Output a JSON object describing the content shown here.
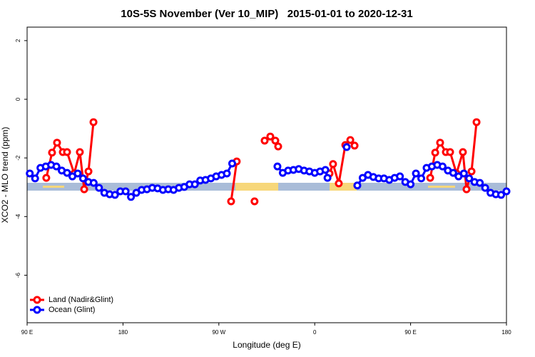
{
  "chart_data": {
    "type": "line",
    "title": "10S-5S November (Ver 10_MIP)   2015-01-01 to 2020-12-31",
    "x_label": "Longitude (deg E)",
    "y_label": "XCO2 - MLO trend (ppm)",
    "xlim": [
      90,
      540
    ],
    "xticks": [
      {
        "value": 90,
        "label": "90 E"
      },
      180,
      {
        "value": 270,
        "label": "90 W"
      },
      {
        "value": 360,
        "label": "0"
      },
      {
        "value": 450,
        "label": "90 E"
      },
      {
        "value": 540,
        "label": "180"
      }
    ],
    "ylim": [
      -7.62,
      2.46
    ],
    "yticks": [
      -6,
      -4,
      -2,
      0,
      2
    ],
    "legend": "bottomleft",
    "series": [
      {
        "name": "Land (Nadir&Glint)",
        "color": "#ff0000",
        "x": [
          108,
          113.4,
          118.1,
          123.5,
          127.5,
          134.2,
          139.5,
          143.6,
          147.6,
          152.3,
          null,
          281.5,
          286.8,
          null,
          303.5,
          null,
          313,
          318.3,
          323,
          325.7,
          null,
          373.9,
          377.2,
          382.6,
          388.7,
          393.4,
          397.4,
          null,
          468.4,
          473.1,
          477.7,
          483.1,
          487.1,
          493.1,
          499.1,
          502.5,
          507.2,
          511.9
        ],
        "values": [
          -2.68,
          -1.82,
          -1.48,
          -1.8,
          -1.8,
          -2.53,
          -1.8,
          -3.07,
          -2.46,
          -0.78,
          null,
          -3.48,
          -2.12,
          null,
          -3.48,
          null,
          -1.41,
          -1.27,
          -1.41,
          -1.61,
          null,
          -2.53,
          -2.21,
          -2.87,
          -1.56,
          -1.39,
          -1.58,
          null,
          -2.68,
          -1.82,
          -1.48,
          -1.8,
          -1.8,
          -2.53,
          -1.8,
          -3.07,
          -2.46,
          -0.78
        ]
      },
      {
        "name": "Ocean (Glint)",
        "color": "#0000ff",
        "x": [
          92.5,
          97.5,
          102.5,
          107.5,
          112.5,
          117.5,
          122.5,
          127.5,
          132.5,
          137.5,
          142.5,
          147.5,
          152.5,
          157.5,
          162.5,
          167.5,
          172.5,
          177.5,
          182.5,
          187.5,
          192.5,
          197.5,
          202.5,
          207.5,
          212.5,
          217.5,
          222.5,
          227.5,
          232.5,
          237.5,
          242.5,
          247.5,
          252.5,
          257.5,
          262.5,
          267.5,
          272.5,
          277.5,
          282.5,
          null,
          325,
          330,
          335,
          340,
          345,
          350,
          355,
          360,
          365,
          370,
          372,
          null,
          390,
          null,
          400,
          405,
          410,
          415,
          420,
          425,
          430,
          435,
          440,
          445,
          450,
          455,
          460,
          465,
          470,
          475,
          480,
          485,
          490,
          495,
          500,
          505,
          510,
          515,
          520,
          525,
          530,
          535,
          540
        ],
        "values": [
          -2.53,
          -2.7,
          -2.34,
          -2.29,
          -2.24,
          -2.29,
          -2.43,
          -2.51,
          -2.63,
          -2.53,
          -2.7,
          -2.82,
          -2.85,
          -3.02,
          -3.19,
          -3.24,
          -3.26,
          -3.14,
          -3.14,
          -3.33,
          -3.19,
          -3.09,
          -3.07,
          -3.02,
          -3.04,
          -3.09,
          -3.07,
          -3.09,
          -3.02,
          -2.99,
          -2.9,
          -2.9,
          -2.77,
          -2.75,
          -2.7,
          -2.63,
          -2.58,
          -2.53,
          -2.19,
          null,
          -2.29,
          -2.51,
          -2.43,
          -2.41,
          -2.38,
          -2.43,
          -2.46,
          -2.51,
          -2.46,
          -2.41,
          -2.68,
          null,
          -1.63,
          null,
          -2.94,
          -2.68,
          -2.58,
          -2.65,
          -2.7,
          -2.7,
          -2.75,
          -2.68,
          -2.63,
          -2.82,
          -2.9,
          -2.53,
          -2.7,
          -2.34,
          -2.29,
          -2.24,
          -2.29,
          -2.43,
          -2.51,
          -2.63,
          -2.53,
          -2.7,
          -2.82,
          -2.85,
          -3.02,
          -3.19,
          -3.24,
          -3.26,
          -3.14
        ]
      }
    ]
  }
}
